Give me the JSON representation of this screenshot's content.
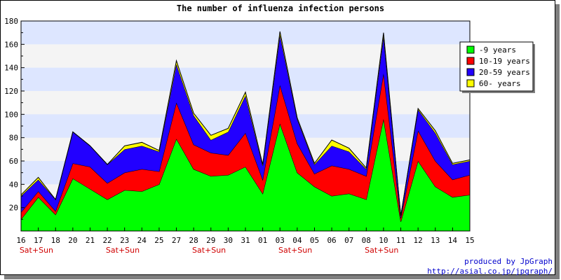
{
  "chart_data": {
    "type": "area",
    "stacked": true,
    "title": "The number of influenza infection persons",
    "categories": [
      "16",
      "17",
      "18",
      "20",
      "21",
      "22",
      "23",
      "24",
      "25",
      "27",
      "28",
      "29",
      "30",
      "31",
      "01",
      "03",
      "04",
      "05",
      "06",
      "07",
      "08",
      "10",
      "11",
      "12",
      "13",
      "14",
      "15"
    ],
    "weekend_label": "Sat+Sun",
    "weekend_indices": [
      1,
      6,
      11,
      16,
      21
    ],
    "ylim": [
      0,
      180
    ],
    "yticks": [
      20,
      40,
      60,
      80,
      100,
      120,
      140,
      160,
      180
    ],
    "background_bands": true,
    "legend_position": "top-right",
    "series": [
      {
        "name": "-9 years",
        "color": "#00ff00",
        "values": [
          10,
          29,
          14,
          45,
          36,
          27,
          35,
          34,
          40,
          79,
          53,
          47,
          48,
          55,
          32,
          92,
          50,
          38,
          30,
          32,
          27,
          96,
          8,
          60,
          38,
          29,
          31
        ]
      },
      {
        "name": "10-19 years",
        "color": "#ff0000",
        "values": [
          6,
          5,
          3,
          13,
          19,
          14,
          15,
          19,
          11,
          31,
          21,
          20,
          17,
          29,
          12,
          33,
          25,
          11,
          26,
          21,
          20,
          39,
          3,
          26,
          22,
          15,
          17
        ]
      },
      {
        "name": "20-59 years",
        "color": "#2200ff",
        "values": [
          14,
          10,
          10,
          27,
          18,
          16,
          20,
          20,
          17,
          33,
          25,
          11,
          20,
          32,
          12,
          43,
          21,
          8,
          17,
          15,
          6,
          32,
          2,
          18,
          24,
          13,
          12
        ]
      },
      {
        "name": "60- years",
        "color": "#ffff00",
        "values": [
          1,
          2,
          0,
          0,
          0,
          0,
          3,
          3,
          1,
          3,
          2,
          4,
          3,
          3,
          1,
          3,
          1,
          1,
          5,
          3,
          1,
          3,
          0,
          1,
          2,
          1,
          1
        ]
      }
    ]
  },
  "credits": {
    "line1": "produced by JpGraph",
    "line2": "http://asial.co.jp/jpgraph/"
  }
}
